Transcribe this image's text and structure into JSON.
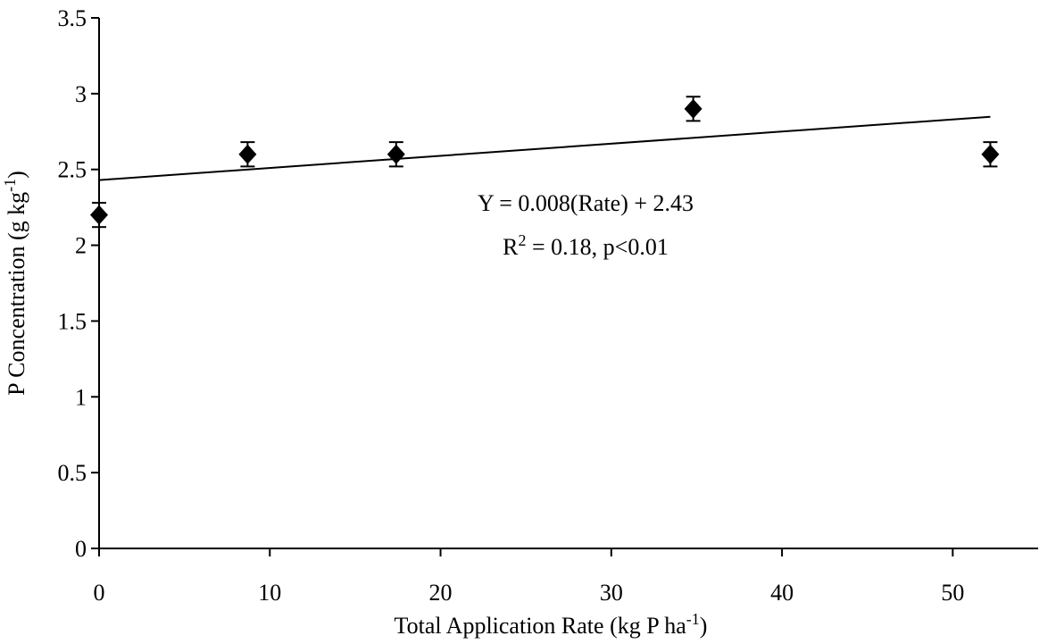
{
  "chart_data": {
    "type": "scatter",
    "title": "",
    "xlabel": {
      "main": "Total Application Rate (kg P ha",
      "sup": "-1",
      "tail": ")"
    },
    "ylabel": {
      "main": "P Concentration (g kg",
      "sup": "-1",
      "tail": ")"
    },
    "xlim": [
      0,
      55
    ],
    "ylim": [
      0,
      3.5
    ],
    "xticks": [
      0,
      10,
      20,
      30,
      40,
      50
    ],
    "xtick_labels": [
      "0",
      "10",
      "20",
      "30",
      "40",
      "50"
    ],
    "yticks": [
      0,
      0.5,
      1,
      1.5,
      2,
      2.5,
      3,
      3.5
    ],
    "ytick_labels": [
      "0",
      "0.5",
      "1",
      "1.5",
      "2",
      "2.5",
      "3",
      "3.5"
    ],
    "grid": false,
    "legend": "none",
    "marker": "diamond",
    "series": [
      {
        "x": [
          0,
          8.7,
          17.4,
          34.8,
          52.2
        ],
        "y": [
          2.2,
          2.6,
          2.6,
          2.9,
          2.6
        ],
        "error": [
          0.08,
          0.08,
          0.08,
          0.08,
          0.08
        ]
      }
    ],
    "trendline": {
      "slope": 0.008,
      "intercept": 2.43,
      "x_range": [
        0,
        52.2
      ]
    },
    "annotations": [
      {
        "text": "Y = 0.008(Rate) + 2.43"
      },
      {
        "prefix": "R",
        "sup": "2",
        "suffix": " = 0.18, p<0.01"
      }
    ],
    "colors": {
      "marker": "#000000",
      "line": "#000000"
    }
  }
}
